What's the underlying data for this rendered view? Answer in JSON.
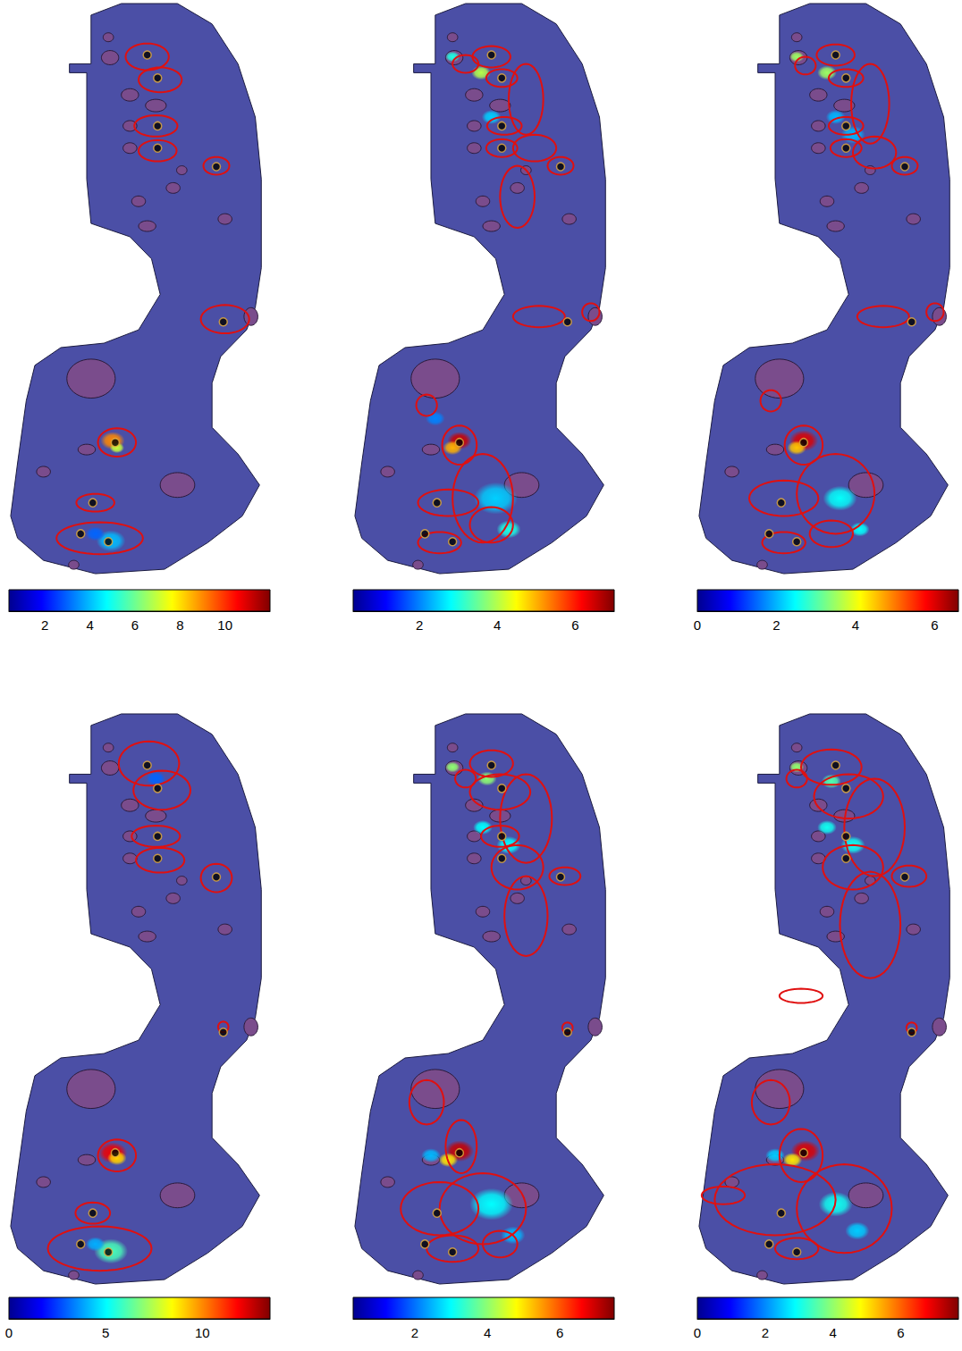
{
  "chart_data": [
    {
      "type": "heatmap",
      "xlim": [
        0,
        300
      ],
      "ylim": [
        0,
        650
      ],
      "tick_labels": false,
      "colorbar": {
        "range": [
          0.4,
          12
        ],
        "ticks": [
          2,
          4,
          6,
          8,
          10
        ]
      },
      "hot_spots": [
        [
          120,
          495,
          10,
          9
        ],
        [
          125,
          503,
          6,
          7
        ],
        [
          118,
          608,
          12,
          4
        ],
        [
          100,
          600,
          8,
          3
        ]
      ],
      "red_contours": [
        [
          160,
          62,
          25,
          15
        ],
        [
          175,
          88,
          25,
          14
        ],
        [
          170,
          140,
          25,
          12
        ],
        [
          172,
          168,
          22,
          12
        ],
        [
          240,
          185,
          15,
          10
        ],
        [
          250,
          358,
          28,
          16
        ],
        [
          125,
          497,
          22,
          16
        ],
        [
          100,
          565,
          22,
          10
        ],
        [
          105,
          605,
          50,
          18
        ]
      ]
    },
    {
      "type": "heatmap",
      "xlim": [
        0,
        300
      ],
      "ylim": [
        0,
        650
      ],
      "tick_labels": false,
      "colorbar": {
        "range": [
          0.3,
          7
        ],
        "ticks": [
          2,
          4,
          6
        ]
      },
      "hot_spots": [
        [
          123,
          495,
          10,
          6.5
        ],
        [
          115,
          503,
          8,
          5
        ],
        [
          165,
          560,
          18,
          2.5
        ],
        [
          180,
          595,
          10,
          3
        ],
        [
          148,
          80,
          8,
          4
        ],
        [
          115,
          62,
          6,
          3
        ],
        [
          95,
          470,
          8,
          2
        ],
        [
          160,
          130,
          8,
          2.5
        ]
      ],
      "red_contours": [
        [
          160,
          62,
          22,
          12
        ],
        [
          172,
          86,
          18,
          10
        ],
        [
          130,
          70,
          15,
          10
        ],
        [
          200,
          110,
          20,
          40
        ],
        [
          175,
          140,
          20,
          10
        ],
        [
          172,
          165,
          18,
          10
        ],
        [
          210,
          165,
          25,
          15
        ],
        [
          190,
          220,
          20,
          35
        ],
        [
          240,
          185,
          15,
          10
        ],
        [
          215,
          355,
          30,
          12
        ],
        [
          275,
          350,
          10,
          10
        ],
        [
          85,
          455,
          12,
          12
        ],
        [
          123,
          500,
          20,
          22
        ],
        [
          110,
          565,
          35,
          15
        ],
        [
          150,
          560,
          35,
          50
        ],
        [
          100,
          610,
          25,
          12
        ],
        [
          160,
          590,
          25,
          20
        ]
      ]
    },
    {
      "type": "heatmap",
      "xlim": [
        0,
        300
      ],
      "ylim": [
        0,
        650
      ],
      "tick_labels": false,
      "colorbar": {
        "range": [
          0,
          6.6
        ],
        "ticks": [
          0,
          2,
          4,
          6
        ]
      },
      "hot_spots": [
        [
          123,
          495,
          12,
          6
        ],
        [
          115,
          503,
          8,
          4.5
        ],
        [
          165,
          560,
          14,
          2.5
        ],
        [
          188,
          595,
          8,
          2.5
        ],
        [
          150,
          80,
          8,
          3.5
        ],
        [
          115,
          62,
          6,
          3.5
        ],
        [
          160,
          130,
          8,
          2
        ],
        [
          180,
          150,
          10,
          2
        ]
      ],
      "red_contours": [
        [
          160,
          60,
          22,
          12
        ],
        [
          172,
          86,
          20,
          10
        ],
        [
          125,
          72,
          12,
          10
        ],
        [
          200,
          115,
          22,
          45
        ],
        [
          172,
          140,
          20,
          10
        ],
        [
          172,
          165,
          18,
          10
        ],
        [
          205,
          170,
          25,
          18
        ],
        [
          240,
          185,
          15,
          10
        ],
        [
          215,
          355,
          30,
          12
        ],
        [
          275,
          350,
          10,
          10
        ],
        [
          85,
          450,
          12,
          12
        ],
        [
          123,
          500,
          22,
          22
        ],
        [
          100,
          560,
          40,
          20
        ],
        [
          160,
          555,
          45,
          45
        ],
        [
          100,
          610,
          25,
          12
        ],
        [
          155,
          600,
          25,
          15
        ]
      ]
    },
    {
      "type": "heatmap",
      "xlim": [
        0,
        300
      ],
      "ylim": [
        0,
        650
      ],
      "tick_labels": false,
      "colorbar": {
        "range": [
          0,
          13.5
        ],
        "ticks": [
          0,
          5,
          10
        ]
      },
      "hot_spots": [
        [
          120,
          497,
          12,
          12
        ],
        [
          125,
          503,
          8,
          9
        ],
        [
          118,
          608,
          14,
          6
        ],
        [
          100,
          600,
          8,
          4
        ],
        [
          170,
          75,
          8,
          3
        ]
      ],
      "red_contours": [
        [
          162,
          58,
          35,
          25
        ],
        [
          177,
          88,
          33,
          22
        ],
        [
          170,
          140,
          28,
          12
        ],
        [
          175,
          167,
          28,
          14
        ],
        [
          240,
          187,
          18,
          16
        ],
        [
          248,
          355,
          6,
          6
        ],
        [
          125,
          500,
          22,
          18
        ],
        [
          97,
          565,
          20,
          12
        ],
        [
          105,
          605,
          60,
          25
        ]
      ]
    },
    {
      "type": "heatmap",
      "xlim": [
        0,
        300
      ],
      "ylim": [
        0,
        650
      ],
      "tick_labels": false,
      "colorbar": {
        "range": [
          0.3,
          7.5
        ],
        "ticks": [
          2,
          4,
          6
        ]
      },
      "hot_spots": [
        [
          123,
          495,
          12,
          7
        ],
        [
          110,
          505,
          8,
          5
        ],
        [
          160,
          555,
          18,
          3
        ],
        [
          185,
          590,
          10,
          2.5
        ],
        [
          155,
          75,
          8,
          4
        ],
        [
          115,
          62,
          6,
          4
        ],
        [
          150,
          130,
          8,
          3
        ],
        [
          180,
          150,
          10,
          3
        ],
        [
          90,
          500,
          8,
          2.5
        ]
      ],
      "red_contours": [
        [
          160,
          58,
          25,
          15
        ],
        [
          170,
          90,
          35,
          20
        ],
        [
          130,
          75,
          12,
          10
        ],
        [
          200,
          120,
          30,
          50
        ],
        [
          170,
          140,
          22,
          12
        ],
        [
          190,
          175,
          30,
          25
        ],
        [
          200,
          230,
          25,
          45
        ],
        [
          245,
          185,
          18,
          10
        ],
        [
          248,
          356,
          6,
          6
        ],
        [
          85,
          440,
          20,
          25
        ],
        [
          125,
          490,
          18,
          30
        ],
        [
          100,
          560,
          45,
          30
        ],
        [
          150,
          560,
          50,
          40
        ],
        [
          115,
          605,
          30,
          15
        ],
        [
          170,
          600,
          20,
          15
        ]
      ]
    },
    {
      "type": "heatmap",
      "xlim": [
        0,
        300
      ],
      "ylim": [
        0,
        650
      ],
      "tick_labels": false,
      "colorbar": {
        "range": [
          0,
          7.7
        ],
        "ticks": [
          0,
          2,
          4,
          6
        ]
      },
      "hot_spots": [
        [
          125,
          495,
          12,
          7
        ],
        [
          110,
          505,
          8,
          5
        ],
        [
          160,
          555,
          14,
          3
        ],
        [
          185,
          585,
          10,
          2.5
        ],
        [
          155,
          78,
          8,
          3.5
        ],
        [
          115,
          62,
          6,
          4
        ],
        [
          150,
          130,
          8,
          3
        ],
        [
          180,
          150,
          10,
          3
        ],
        [
          90,
          500,
          8,
          2.5
        ]
      ],
      "red_contours": [
        [
          155,
          62,
          35,
          20
        ],
        [
          175,
          95,
          40,
          25
        ],
        [
          115,
          75,
          12,
          10
        ],
        [
          205,
          130,
          35,
          55
        ],
        [
          180,
          175,
          35,
          25
        ],
        [
          200,
          240,
          35,
          60
        ],
        [
          245,
          185,
          20,
          12
        ],
        [
          120,
          320,
          25,
          8
        ],
        [
          248,
          356,
          6,
          6
        ],
        [
          85,
          440,
          22,
          25
        ],
        [
          120,
          500,
          25,
          30
        ],
        [
          90,
          550,
          70,
          40
        ],
        [
          170,
          560,
          55,
          50
        ],
        [
          115,
          605,
          25,
          12
        ],
        [
          30,
          545,
          25,
          10
        ]
      ]
    }
  ],
  "outline": [
    [
      70,
      70
    ],
    [
      95,
      70
    ],
    [
      95,
      15
    ],
    [
      130,
      2
    ],
    [
      195,
      2
    ],
    [
      235,
      25
    ],
    [
      265,
      70
    ],
    [
      285,
      130
    ],
    [
      292,
      200
    ],
    [
      292,
      300
    ],
    [
      285,
      345
    ],
    [
      275,
      370
    ],
    [
      245,
      400
    ],
    [
      235,
      430
    ],
    [
      235,
      480
    ],
    [
      265,
      510
    ],
    [
      290,
      545
    ],
    [
      270,
      580
    ],
    [
      230,
      610
    ],
    [
      180,
      640
    ],
    [
      100,
      645
    ],
    [
      40,
      630
    ],
    [
      10,
      605
    ],
    [
      2,
      580
    ],
    [
      10,
      520
    ],
    [
      20,
      450
    ],
    [
      30,
      410
    ],
    [
      60,
      390
    ],
    [
      110,
      385
    ],
    [
      150,
      370
    ],
    [
      175,
      330
    ],
    [
      165,
      290
    ],
    [
      140,
      265
    ],
    [
      95,
      250
    ],
    [
      90,
      200
    ],
    [
      90,
      80
    ],
    [
      70,
      80
    ]
  ],
  "features": [
    [
      95,
      425,
      28,
      22
    ],
    [
      195,
      545,
      20,
      14
    ],
    [
      117,
      63,
      10,
      8
    ],
    [
      140,
      105,
      10,
      7
    ],
    [
      170,
      117,
      12,
      7
    ],
    [
      140,
      140,
      8,
      6
    ],
    [
      140,
      165,
      8,
      6
    ],
    [
      190,
      210,
      8,
      6
    ],
    [
      150,
      225,
      8,
      6
    ],
    [
      280,
      355,
      8,
      10
    ],
    [
      40,
      530,
      8,
      6
    ],
    [
      90,
      505,
      10,
      6
    ],
    [
      160,
      253,
      10,
      6
    ],
    [
      75,
      635,
      6,
      5
    ],
    [
      250,
      245,
      8,
      6
    ],
    [
      115,
      40,
      6,
      5
    ],
    [
      200,
      190,
      6,
      5
    ]
  ],
  "stations": [
    [
      160,
      60
    ],
    [
      172,
      86
    ],
    [
      172,
      140
    ],
    [
      172,
      165
    ],
    [
      240,
      186
    ],
    [
      248,
      361
    ],
    [
      123,
      497
    ],
    [
      97,
      565
    ],
    [
      83,
      600
    ],
    [
      115,
      609
    ]
  ]
}
